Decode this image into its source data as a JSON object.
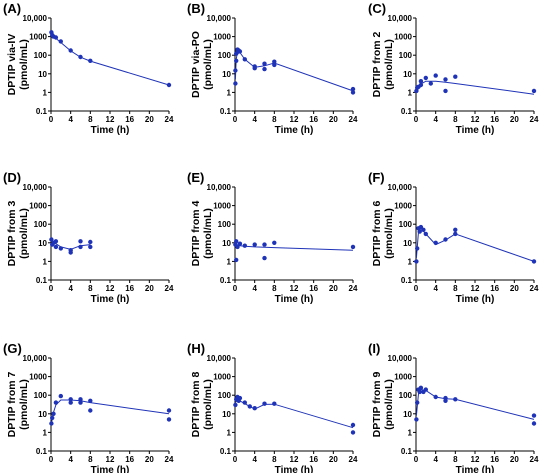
{
  "figure": {
    "x_ticks": [
      "0",
      "4",
      "8",
      "12",
      "16",
      "20",
      "24"
    ],
    "y_ticks": [
      "0.1",
      "1",
      "10",
      "100",
      "1000",
      "10,000"
    ]
  },
  "chart_data": [
    {
      "type": "scatter",
      "panel_label": "(A)",
      "ylabel_line1": "DPTIP via-IV",
      "ylabel_line2": "(pmol/mL)",
      "xlabel": "Time (h)",
      "xlim": [
        0,
        24
      ],
      "ylim": [
        0.1,
        10000
      ],
      "y_scale": "log",
      "points": [
        [
          0.08,
          1700
        ],
        [
          0.25,
          1200
        ],
        [
          0.5,
          1000
        ],
        [
          1,
          900
        ],
        [
          2,
          550
        ],
        [
          4,
          180
        ],
        [
          6,
          80
        ],
        [
          8,
          50
        ],
        [
          24,
          2.5
        ]
      ],
      "fit": [
        [
          0.08,
          1700
        ],
        [
          0.25,
          1350
        ],
        [
          0.5,
          1050
        ],
        [
          1,
          800
        ],
        [
          2,
          480
        ],
        [
          4,
          170
        ],
        [
          6,
          78
        ],
        [
          8,
          48
        ],
        [
          24,
          2.5
        ]
      ]
    },
    {
      "type": "scatter",
      "panel_label": "(B)",
      "ylabel_line1": "DPTIP via-PO",
      "ylabel_line2": "(pmol/mL)",
      "xlabel": "Time (h)",
      "xlim": [
        0,
        24
      ],
      "ylim": [
        0.1,
        10000
      ],
      "y_scale": "log",
      "points": [
        [
          0.08,
          3
        ],
        [
          0.08,
          15
        ],
        [
          0.25,
          50
        ],
        [
          0.25,
          120
        ],
        [
          0.5,
          150
        ],
        [
          0.5,
          200
        ],
        [
          0.75,
          180
        ],
        [
          1,
          160
        ],
        [
          2,
          60
        ],
        [
          4,
          25
        ],
        [
          4,
          20
        ],
        [
          6,
          35
        ],
        [
          6,
          18
        ],
        [
          8,
          45
        ],
        [
          8,
          30
        ],
        [
          24,
          1.5
        ],
        [
          24,
          1
        ]
      ],
      "fit": [
        [
          0.08,
          5
        ],
        [
          0.25,
          60
        ],
        [
          0.5,
          150
        ],
        [
          0.75,
          170
        ],
        [
          1,
          140
        ],
        [
          2,
          60
        ],
        [
          4,
          22
        ],
        [
          6,
          27
        ],
        [
          8,
          38
        ],
        [
          24,
          1.2
        ]
      ]
    },
    {
      "type": "scatter",
      "panel_label": "(C)",
      "ylabel_line1": "DPTIP from 2",
      "ylabel_line2": "(pmol/mL)",
      "xlabel": "Time (h)",
      "xlim": [
        0,
        24
      ],
      "ylim": [
        0.1,
        10000
      ],
      "y_scale": "log",
      "points": [
        [
          0.08,
          1.2
        ],
        [
          0.25,
          1.8
        ],
        [
          0.5,
          2
        ],
        [
          1,
          4
        ],
        [
          1,
          2.5
        ],
        [
          2,
          6
        ],
        [
          3,
          3
        ],
        [
          4,
          8
        ],
        [
          6,
          5
        ],
        [
          6,
          1.2
        ],
        [
          8,
          7
        ],
        [
          24,
          1.2
        ]
      ],
      "fit": [
        [
          0.08,
          1
        ],
        [
          0.5,
          1.8
        ],
        [
          1,
          2.8
        ],
        [
          2,
          4
        ],
        [
          4,
          4
        ],
        [
          6,
          3.5
        ],
        [
          8,
          3
        ],
        [
          24,
          0.8
        ]
      ]
    },
    {
      "type": "scatter",
      "panel_label": "(D)",
      "ylabel_line1": "DPTIP from 3",
      "ylabel_line2": "(pmol/mL)",
      "xlabel": "Time (h)",
      "xlim": [
        0,
        24
      ],
      "ylim": [
        0.1,
        10000
      ],
      "y_scale": "log",
      "points": [
        [
          0.08,
          15
        ],
        [
          0.25,
          8
        ],
        [
          0.5,
          10
        ],
        [
          1,
          12
        ],
        [
          1,
          6
        ],
        [
          2,
          5
        ],
        [
          4,
          4
        ],
        [
          4,
          3
        ],
        [
          6,
          12
        ],
        [
          6,
          6
        ],
        [
          8,
          11
        ],
        [
          8,
          6
        ]
      ],
      "fit": [
        [
          0.08,
          12
        ],
        [
          0.5,
          11
        ],
        [
          1,
          9
        ],
        [
          2,
          6
        ],
        [
          4,
          4.5
        ],
        [
          6,
          7
        ],
        [
          8,
          8
        ]
      ]
    },
    {
      "type": "scatter",
      "panel_label": "(E)",
      "ylabel_line1": "DPTIP from 4",
      "ylabel_line2": "(pmol/mL)",
      "xlabel": "Time (h)",
      "xlim": [
        0,
        24
      ],
      "ylim": [
        0.1,
        10000
      ],
      "y_scale": "log",
      "points": [
        [
          0.08,
          8
        ],
        [
          0.25,
          12
        ],
        [
          0.25,
          1.2
        ],
        [
          0.5,
          6
        ],
        [
          1,
          9
        ],
        [
          2,
          7
        ],
        [
          4,
          8
        ],
        [
          6,
          1.5
        ],
        [
          6,
          8
        ],
        [
          8,
          10
        ],
        [
          24,
          6
        ]
      ],
      "fit": [
        [
          0.08,
          8
        ],
        [
          0.5,
          7.5
        ],
        [
          1,
          7
        ],
        [
          2,
          6.5
        ],
        [
          4,
          6
        ],
        [
          8,
          5.5
        ],
        [
          24,
          4
        ]
      ]
    },
    {
      "type": "scatter",
      "panel_label": "(F)",
      "ylabel_line1": "DPTIP from 6",
      "ylabel_line2": "(pmol/mL)",
      "xlabel": "Time (h)",
      "xlim": [
        0,
        24
      ],
      "ylim": [
        0.1,
        10000
      ],
      "y_scale": "log",
      "points": [
        [
          0.08,
          1
        ],
        [
          0.25,
          5
        ],
        [
          0.5,
          60
        ],
        [
          0.75,
          40
        ],
        [
          1,
          70
        ],
        [
          1.5,
          50
        ],
        [
          2,
          30
        ],
        [
          4,
          10
        ],
        [
          6,
          15
        ],
        [
          8,
          30
        ],
        [
          8,
          50
        ],
        [
          24,
          1
        ]
      ],
      "fit": [
        [
          0.08,
          1.5
        ],
        [
          0.5,
          40
        ],
        [
          1,
          60
        ],
        [
          2,
          30
        ],
        [
          4,
          8
        ],
        [
          6,
          14
        ],
        [
          8,
          30
        ],
        [
          24,
          1
        ]
      ]
    },
    {
      "type": "scatter",
      "panel_label": "(G)",
      "ylabel_line1": "DPTIP from 7",
      "ylabel_line2": "(pmol/mL)",
      "xlabel": "Time (h)",
      "xlim": [
        0,
        24
      ],
      "ylim": [
        0.1,
        10000
      ],
      "y_scale": "log",
      "points": [
        [
          0.08,
          3
        ],
        [
          0.25,
          6
        ],
        [
          0.5,
          10
        ],
        [
          1,
          40
        ],
        [
          2,
          90
        ],
        [
          4,
          60
        ],
        [
          4,
          40
        ],
        [
          6,
          60
        ],
        [
          6,
          40
        ],
        [
          8,
          50
        ],
        [
          8,
          15
        ],
        [
          24,
          15
        ],
        [
          24,
          5
        ]
      ],
      "fit": [
        [
          0.08,
          3
        ],
        [
          0.5,
          12
        ],
        [
          1,
          30
        ],
        [
          2,
          55
        ],
        [
          4,
          55
        ],
        [
          6,
          50
        ],
        [
          8,
          40
        ],
        [
          24,
          10
        ]
      ]
    },
    {
      "type": "scatter",
      "panel_label": "(H)",
      "ylabel_line1": "DPTIP from 8",
      "ylabel_line2": "(pmol/mL)",
      "xlabel": "Time (h)",
      "xlim": [
        0,
        24
      ],
      "ylim": [
        0.1,
        10000
      ],
      "y_scale": "log",
      "points": [
        [
          0.08,
          30
        ],
        [
          0.25,
          60
        ],
        [
          0.5,
          80
        ],
        [
          0.75,
          50
        ],
        [
          1,
          70
        ],
        [
          2,
          40
        ],
        [
          3,
          25
        ],
        [
          4,
          20
        ],
        [
          6,
          35
        ],
        [
          8,
          35
        ],
        [
          24,
          2.5
        ],
        [
          24,
          1
        ]
      ],
      "fit": [
        [
          0.08,
          40
        ],
        [
          0.5,
          55
        ],
        [
          1,
          50
        ],
        [
          2,
          35
        ],
        [
          4,
          18
        ],
        [
          6,
          32
        ],
        [
          8,
          33
        ],
        [
          24,
          1.8
        ]
      ]
    },
    {
      "type": "scatter",
      "panel_label": "(I)",
      "ylabel_line1": "DPTIP from 9",
      "ylabel_line2": "(pmol/mL)",
      "xlabel": "Time (h)",
      "xlim": [
        0,
        24
      ],
      "ylim": [
        0.1,
        10000
      ],
      "y_scale": "log",
      "points": [
        [
          0.08,
          5
        ],
        [
          0.25,
          40
        ],
        [
          0.5,
          200
        ],
        [
          0.75,
          150
        ],
        [
          1,
          250
        ],
        [
          1.5,
          150
        ],
        [
          2,
          200
        ],
        [
          4,
          80
        ],
        [
          6,
          70
        ],
        [
          6,
          50
        ],
        [
          8,
          60
        ],
        [
          24,
          8
        ],
        [
          24,
          3
        ]
      ],
      "fit": [
        [
          0.08,
          8
        ],
        [
          0.5,
          120
        ],
        [
          1,
          200
        ],
        [
          2,
          180
        ],
        [
          4,
          80
        ],
        [
          6,
          65
        ],
        [
          8,
          60
        ],
        [
          24,
          5
        ]
      ]
    }
  ]
}
